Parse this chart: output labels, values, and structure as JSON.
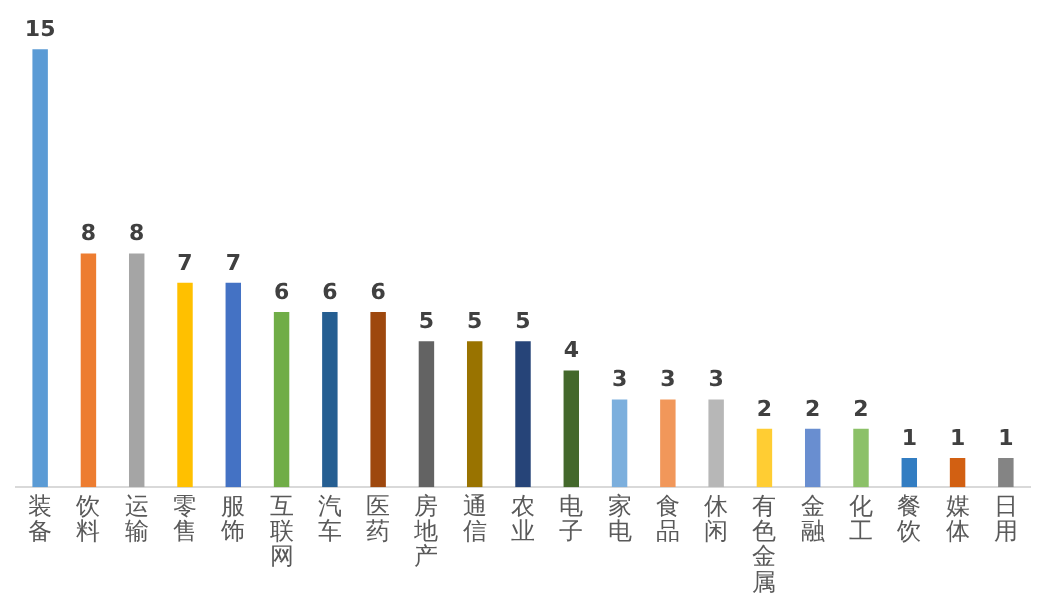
{
  "chart_data": {
    "type": "bar",
    "categories": [
      "装备",
      "饮料",
      "运输",
      "零售",
      "服饰",
      "互联网",
      "汽车",
      "医药",
      "房地产",
      "通信",
      "农业",
      "电子",
      "家电",
      "食品",
      "休闲",
      "有色金属",
      "金融",
      "化工",
      "餐饮",
      "媒体",
      "日用"
    ],
    "values": [
      15,
      8,
      8,
      7,
      7,
      6,
      6,
      6,
      5,
      5,
      5,
      4,
      3,
      3,
      3,
      2,
      2,
      2,
      1,
      1,
      1
    ],
    "colors": [
      "#5b9bd5",
      "#ed7d31",
      "#a5a5a5",
      "#ffc000",
      "#4472c4",
      "#70ad47",
      "#255e91",
      "#9e480e",
      "#636363",
      "#997300",
      "#264478",
      "#43682b",
      "#7cafdd",
      "#f1975a",
      "#b7b7b7",
      "#ffcd33",
      "#698ed0",
      "#8cc168",
      "#327dc2",
      "#d26012",
      "#848484"
    ],
    "data_labels": true,
    "grid": false,
    "legend": false
  }
}
